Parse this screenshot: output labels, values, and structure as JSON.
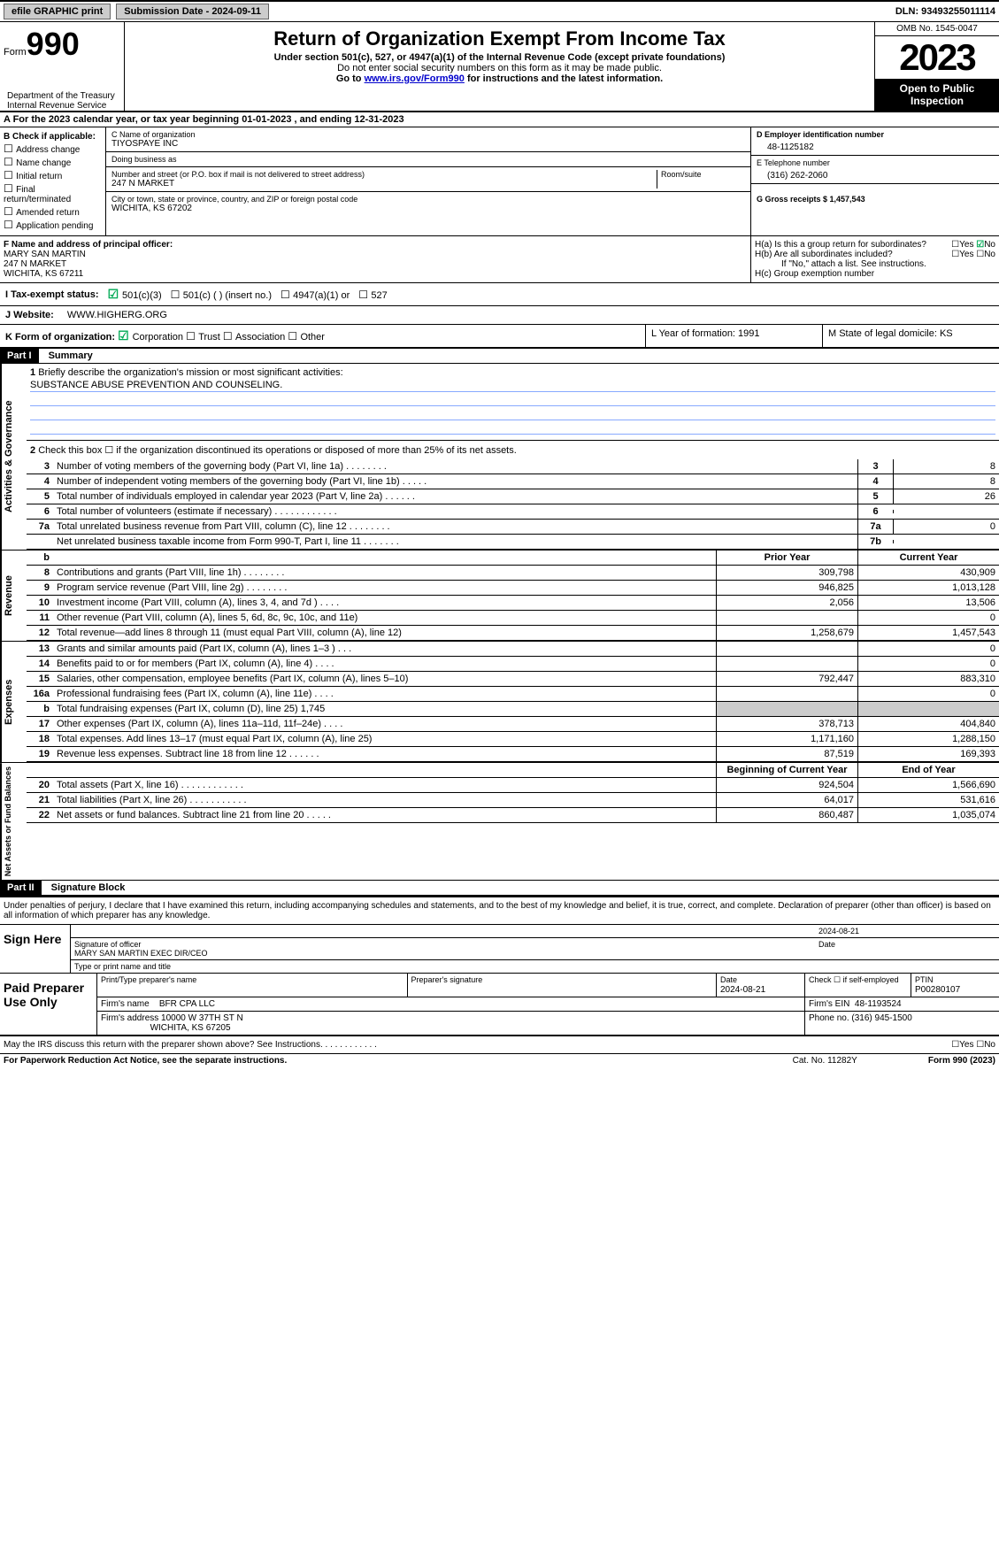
{
  "topbar": {
    "efile": "efile GRAPHIC print",
    "sub_label": "Submission Date - 2024-09-11",
    "dln_label": "DLN: 93493255011114"
  },
  "header": {
    "form_prefix": "Form",
    "form_num": "990",
    "title": "Return of Organization Exempt From Income Tax",
    "sub1": "Under section 501(c), 527, or 4947(a)(1) of the Internal Revenue Code (except private foundations)",
    "sub2": "Do not enter social security numbers on this form as it may be made public.",
    "goto_prefix": "Go to ",
    "goto_link": "www.irs.gov/Form990",
    "goto_suffix": " for instructions and the latest information.",
    "omb": "OMB No. 1545-0047",
    "year": "2023",
    "open": "Open to Public Inspection",
    "dept": "Department of the Treasury\nInternal Revenue Service"
  },
  "period": "A For the 2023 calendar year, or tax year beginning 01-01-2023   , and ending 12-31-2023",
  "sectionB": {
    "label": "B Check if applicable:",
    "opts": [
      "Address change",
      "Name change",
      "Initial return",
      "Final return/terminated",
      "Amended return",
      "Application pending"
    ]
  },
  "sectionC": {
    "name_label": "C Name of organization",
    "name": "TIYOSPAYE INC",
    "dba_label": "Doing business as",
    "dba": "",
    "addr_label": "Number and street (or P.O. box if mail is not delivered to street address)",
    "room_label": "Room/suite",
    "addr": "247 N MARKET",
    "city_label": "City or town, state or province, country, and ZIP or foreign postal code",
    "city": "WICHITA, KS  67202"
  },
  "sectionD": {
    "label": "D Employer identification number",
    "ein": "48-1125182"
  },
  "sectionE": {
    "label": "E Telephone number",
    "phone": "(316) 262-2060"
  },
  "sectionG": {
    "label": "G Gross receipts $ 1,457,543"
  },
  "sectionF": {
    "label": "F  Name and address of principal officer:",
    "name": "MARY SAN MARTIN",
    "addr1": "247 N MARKET",
    "addr2": "WICHITA, KS  67211"
  },
  "sectionH": {
    "ha": "H(a)  Is this a group return for subordinates?",
    "hb": "H(b)  Are all subordinates included?",
    "hb_note": "If \"No,\" attach a list. See instructions.",
    "hc": "H(c)  Group exemption number"
  },
  "statusI": {
    "label": "I   Tax-exempt status:",
    "o1": "501(c)(3)",
    "o2": "501(c) (  ) (insert no.)",
    "o3": "4947(a)(1) or",
    "o4": "527"
  },
  "sectionJ": {
    "label": "J   Website:",
    "url": "WWW.HIGHERG.ORG"
  },
  "sectionK": {
    "label": "K Form of organization:",
    "o1": "Corporation",
    "o2": "Trust",
    "o3": "Association",
    "o4": "Other"
  },
  "sectionL": "L Year of formation: 1991",
  "sectionM": "M State of legal domicile: KS",
  "part1": {
    "hdr": "Part I",
    "title": "Summary"
  },
  "summary": {
    "tab_gov": "Activities & Governance",
    "tab_rev": "Revenue",
    "tab_exp": "Expenses",
    "tab_net": "Net Assets or\nFund Balances",
    "l1": "Briefly describe the organization's mission or most significant activities:",
    "mission": "SUBSTANCE ABUSE PREVENTION AND COUNSELING.",
    "l2": "Check this box ☐ if the organization discontinued its operations or disposed of more than 25% of its net assets.",
    "lines_gov": [
      {
        "n": "3",
        "t": "Number of voting members of the governing body (Part VI, line 1a)   .    .    .    .    .    .    .    .",
        "b": "3",
        "v": "8"
      },
      {
        "n": "4",
        "t": "Number of independent voting members of the governing body (Part VI, line 1b)   .    .    .    .    .",
        "b": "4",
        "v": "8"
      },
      {
        "n": "5",
        "t": "Total number of individuals employed in calendar year 2023 (Part V, line 2a)   .    .    .    .    .    .",
        "b": "5",
        "v": "26"
      },
      {
        "n": "6",
        "t": "Total number of volunteers (estimate if necessary)   .    .    .    .    .    .    .    .    .    .    .    .",
        "b": "6",
        "v": ""
      },
      {
        "n": "7a",
        "t": "Total unrelated business revenue from Part VIII, column (C), line 12   .    .    .    .    .    .    .    .",
        "b": "7a",
        "v": "0"
      },
      {
        "n": "",
        "t": "Net unrelated business taxable income from Form 990-T, Part I, line 11   .    .    .    .    .    .    .",
        "b": "7b",
        "v": ""
      }
    ],
    "hdr_py": "Prior Year",
    "hdr_cy": "Current Year",
    "lines_rev": [
      {
        "n": "8",
        "t": "Contributions and grants (Part VIII, line 1h)   .    .    .    .    .    .    .    .",
        "py": "309,798",
        "cy": "430,909"
      },
      {
        "n": "9",
        "t": "Program service revenue (Part VIII, line 2g)   .    .    .    .    .    .    .    .",
        "py": "946,825",
        "cy": "1,013,128"
      },
      {
        "n": "10",
        "t": "Investment income (Part VIII, column (A), lines 3, 4, and 7d )   .    .    .    .",
        "py": "2,056",
        "cy": "13,506"
      },
      {
        "n": "11",
        "t": "Other revenue (Part VIII, column (A), lines 5, 6d, 8c, 9c, 10c, and 11e)",
        "py": "",
        "cy": "0"
      },
      {
        "n": "12",
        "t": "Total revenue—add lines 8 through 11 (must equal Part VIII, column (A), line 12)",
        "py": "1,258,679",
        "cy": "1,457,543"
      }
    ],
    "lines_exp": [
      {
        "n": "13",
        "t": "Grants and similar amounts paid (Part IX, column (A), lines 1–3 )   .    .    .",
        "py": "",
        "cy": "0"
      },
      {
        "n": "14",
        "t": "Benefits paid to or for members (Part IX, column (A), line 4)   .    .    .    .",
        "py": "",
        "cy": "0"
      },
      {
        "n": "15",
        "t": "Salaries, other compensation, employee benefits (Part IX, column (A), lines 5–10)",
        "py": "792,447",
        "cy": "883,310"
      },
      {
        "n": "16a",
        "t": "Professional fundraising fees (Part IX, column (A), line 11e)   .    .    .    .",
        "py": "",
        "cy": "0"
      },
      {
        "n": "b",
        "t": "Total fundraising expenses (Part IX, column (D), line 25) 1,745",
        "py": "SHADE",
        "cy": "SHADE"
      },
      {
        "n": "17",
        "t": "Other expenses (Part IX, column (A), lines 11a–11d, 11f–24e)   .    .    .    .",
        "py": "378,713",
        "cy": "404,840"
      },
      {
        "n": "18",
        "t": "Total expenses. Add lines 13–17 (must equal Part IX, column (A), line 25)",
        "py": "1,171,160",
        "cy": "1,288,150"
      },
      {
        "n": "19",
        "t": "Revenue less expenses. Subtract line 18 from line 12   .    .    .    .    .    .",
        "py": "87,519",
        "cy": "169,393"
      }
    ],
    "hdr_boy": "Beginning of Current Year",
    "hdr_eoy": "End of Year",
    "lines_net": [
      {
        "n": "20",
        "t": "Total assets (Part X, line 16)   .    .    .    .    .    .    .    .    .    .    .    .",
        "py": "924,504",
        "cy": "1,566,690"
      },
      {
        "n": "21",
        "t": "Total liabilities (Part X, line 26)   .    .    .    .    .    .    .    .    .    .    .",
        "py": "64,017",
        "cy": "531,616"
      },
      {
        "n": "22",
        "t": "Net assets or fund balances. Subtract line 21 from line 20   .    .    .    .    .",
        "py": "860,487",
        "cy": "1,035,074"
      }
    ]
  },
  "part2": {
    "hdr": "Part II",
    "title": "Signature Block"
  },
  "sig": {
    "decl": "Under penalties of perjury, I declare that I have examined this return, including accompanying schedules and statements, and to the best of my knowledge and belief, it is true, correct, and complete. Declaration of preparer (other than officer) is based on all information of which preparer has any knowledge.",
    "sign_here": "Sign Here",
    "sig_officer_label": "Signature of officer",
    "sig_officer": "MARY SAN MARTIN  EXEC DIR/CEO",
    "sig_date": "2024-08-21",
    "date_label": "Date",
    "type_label": "Type or print name and title",
    "paid_label": "Paid Preparer Use Only",
    "prep_name_label": "Print/Type preparer's name",
    "prep_sig_label": "Preparer's signature",
    "prep_date_label": "Date",
    "prep_date": "2024-08-21",
    "prep_check": "Check ☐ if self-employed",
    "ptin_label": "PTIN",
    "ptin": "P00280107",
    "firm_name_label": "Firm's name",
    "firm_name": "BFR CPA LLC",
    "firm_ein_label": "Firm's EIN",
    "firm_ein": "48-1193524",
    "firm_addr_label": "Firm's address",
    "firm_addr1": "10000 W 37TH ST N",
    "firm_addr2": "WICHITA, KS  67205",
    "firm_phone_label": "Phone no.",
    "firm_phone": "(316) 945-1500"
  },
  "footer": {
    "discuss": "May the IRS discuss this return with the preparer shown above? See Instructions.    .    .    .    .    .    .    .    .    .    .    .",
    "paperwork": "For Paperwork Reduction Act Notice, see the separate instructions.",
    "cat": "Cat. No. 11282Y",
    "form": "Form 990 (2023)"
  }
}
